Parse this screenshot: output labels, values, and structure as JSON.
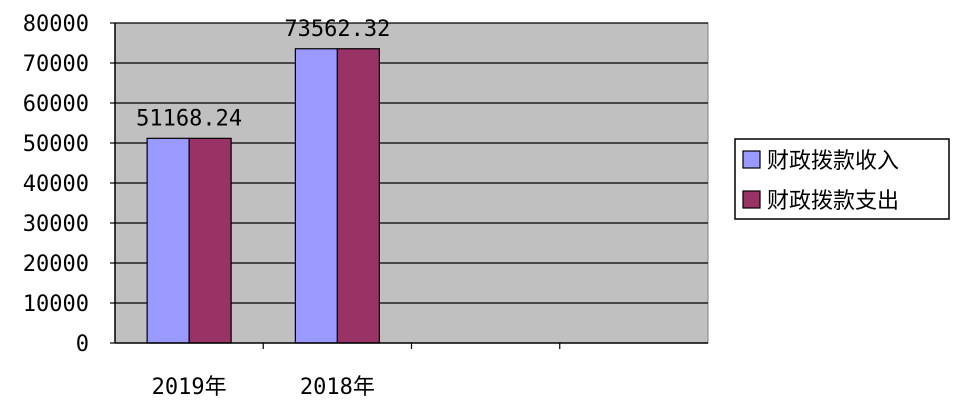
{
  "chart_data": {
    "type": "bar",
    "categories": [
      "2019年",
      "2018年",
      "",
      ""
    ],
    "series": [
      {
        "name": "财政拨款收入",
        "values": [
          51168.24,
          73562.32,
          null,
          null
        ],
        "color": "#9999ff"
      },
      {
        "name": "财政拨款支出",
        "values": [
          51168.24,
          73562.32,
          null,
          null
        ],
        "color": "#993366"
      }
    ],
    "data_labels": [
      "51168.24",
      "73562.32"
    ],
    "y_ticks": [
      "0",
      "10000",
      "20000",
      "30000",
      "40000",
      "50000",
      "60000",
      "70000",
      "80000"
    ],
    "ylim": [
      0,
      80000
    ],
    "grid": true,
    "plot_background": "#c0c0c0",
    "legend_position": "right"
  }
}
